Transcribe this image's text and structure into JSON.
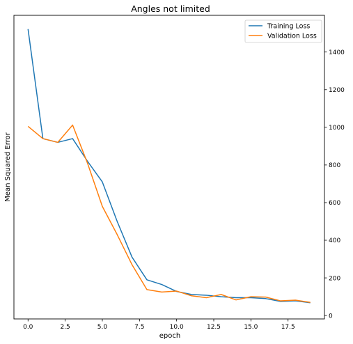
{
  "chart_data": {
    "type": "line",
    "title": "Angles not limited",
    "xlabel": "epoch",
    "ylabel": "Mean Squared Error",
    "xlim": [
      -0.95,
      19.95
    ],
    "ylim": [
      -18,
      1595
    ],
    "x_ticks": [
      0.0,
      2.5,
      5.0,
      7.5,
      10.0,
      12.5,
      15.0,
      17.5
    ],
    "x_tick_labels": [
      "0.0",
      "2.5",
      "5.0",
      "7.5",
      "10.0",
      "12.5",
      "15.0",
      "17.5"
    ],
    "y_ticks": [
      0,
      200,
      400,
      600,
      800,
      1000,
      1200,
      1400
    ],
    "y_tick_labels": [
      "0",
      "200",
      "400",
      "600",
      "800",
      "1000",
      "1200",
      "1400"
    ],
    "y_axis_side": "right",
    "grid": false,
    "legend_position": "top-right",
    "x": [
      0,
      1,
      2,
      3,
      4,
      5,
      6,
      7,
      8,
      9,
      10,
      11,
      12,
      13,
      14,
      15,
      16,
      17,
      18,
      19
    ],
    "series": [
      {
        "name": "Training Loss",
        "color": "#1f77b4",
        "values": [
          1522,
          940,
          920,
          940,
          820,
          710,
          500,
          310,
          190,
          165,
          128,
          112,
          108,
          100,
          95,
          95,
          90,
          75,
          78,
          68
        ]
      },
      {
        "name": "Validation Loss",
        "color": "#ff7f0e",
        "values": [
          1005,
          940,
          920,
          1012,
          810,
          580,
          430,
          270,
          138,
          125,
          130,
          105,
          95,
          112,
          83,
          100,
          98,
          78,
          82,
          70
        ]
      }
    ]
  }
}
